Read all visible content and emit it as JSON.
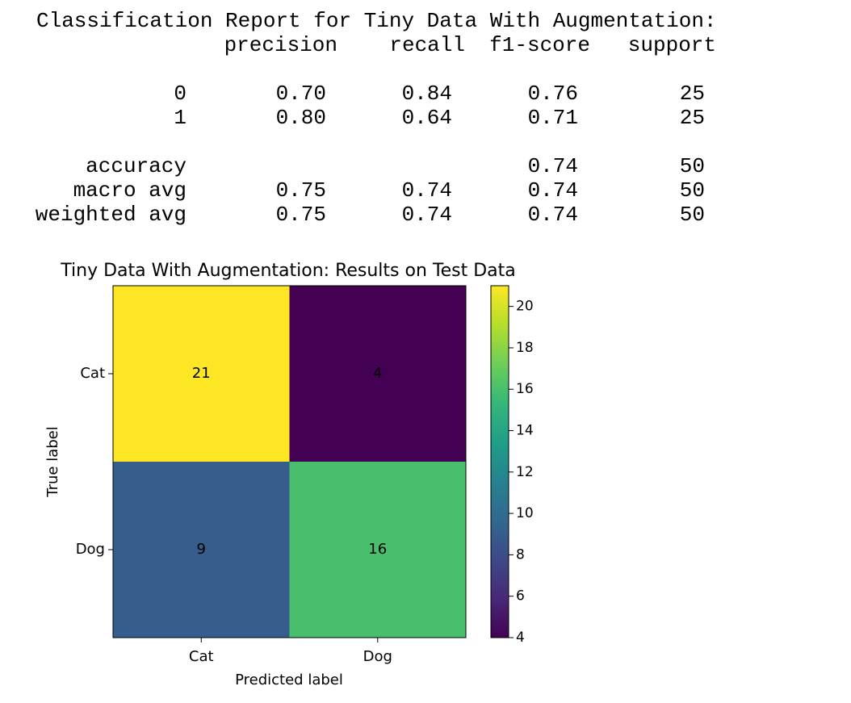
{
  "report": {
    "title": "Classification Report for Tiny Data With Augmentation:",
    "headers": [
      "precision",
      "recall",
      "f1-score",
      "support"
    ],
    "rows": [
      {
        "label": "0",
        "values": [
          "0.70",
          "0.84",
          "0.76",
          25
        ]
      },
      {
        "label": "1",
        "values": [
          "0.80",
          "0.64",
          "0.71",
          25
        ]
      },
      {
        "label": "accuracy",
        "values": [
          null,
          null,
          "0.74",
          50
        ]
      },
      {
        "label": "macro avg",
        "values": [
          "0.75",
          "0.74",
          "0.74",
          50
        ]
      },
      {
        "label": "weighted avg",
        "values": [
          "0.75",
          "0.74",
          "0.74",
          50
        ]
      }
    ]
  },
  "chart_data": {
    "type": "heatmap",
    "title": "Tiny Data With Augmentation: Results on Test Data",
    "xlabel": "Predicted label",
    "ylabel": "True label",
    "x_categories": [
      "Cat",
      "Dog"
    ],
    "y_categories": [
      "Cat",
      "Dog"
    ],
    "values": [
      [
        21,
        4
      ],
      [
        9,
        16
      ]
    ],
    "colormap": "viridis",
    "clim": [
      4,
      21
    ],
    "cticks": [
      4,
      6,
      8,
      10,
      12,
      14,
      16,
      18,
      20
    ]
  }
}
